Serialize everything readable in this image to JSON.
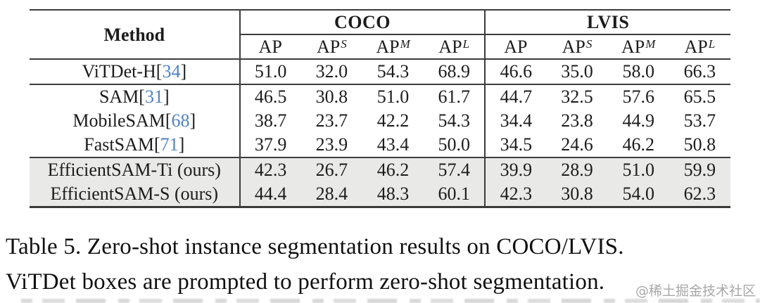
{
  "table": {
    "method_header": "Method",
    "groups": [
      {
        "label": "COCO"
      },
      {
        "label": "LVIS"
      }
    ],
    "subheaders": [
      {
        "base": "AP",
        "sup": ""
      },
      {
        "base": "AP",
        "sup": "S"
      },
      {
        "base": "AP",
        "sup": "M"
      },
      {
        "base": "AP",
        "sup": "L"
      },
      {
        "base": "AP",
        "sup": ""
      },
      {
        "base": "AP",
        "sup": "S"
      },
      {
        "base": "AP",
        "sup": "M"
      },
      {
        "base": "AP",
        "sup": "L"
      }
    ],
    "rows": [
      {
        "method": {
          "text": "ViTDet-H",
          "open": "[",
          "cite": "34",
          "close": "]"
        },
        "values": [
          "51.0",
          "32.0",
          "54.3",
          "68.9",
          "46.6",
          "35.0",
          "58.0",
          "66.3"
        ]
      },
      {
        "method": {
          "text": "SAM",
          "open": "[",
          "cite": "31",
          "close": "]"
        },
        "values": [
          "46.5",
          "30.8",
          "51.0",
          "61.7",
          "44.7",
          "32.5",
          "57.6",
          "65.5"
        ]
      },
      {
        "method": {
          "text": "MobileSAM",
          "open": "[",
          "cite": "68",
          "close": "]"
        },
        "values": [
          "38.7",
          "23.7",
          "42.2",
          "54.3",
          "34.4",
          "23.8",
          "44.9",
          "53.7"
        ]
      },
      {
        "method": {
          "text": "FastSAM",
          "open": "[",
          "cite": "71",
          "close": "]"
        },
        "values": [
          "37.9",
          "23.9",
          "43.4",
          "50.0",
          "34.5",
          "24.6",
          "46.2",
          "50.8"
        ]
      },
      {
        "method": {
          "text": "EfficientSAM-Ti (ours)",
          "open": "",
          "cite": "",
          "close": ""
        },
        "values": [
          "42.3",
          "26.7",
          "46.2",
          "57.4",
          "39.9",
          "28.9",
          "51.0",
          "59.9"
        ]
      },
      {
        "method": {
          "text": "EfficientSAM-S (ours)",
          "open": "",
          "cite": "",
          "close": ""
        },
        "values": [
          "44.4",
          "28.4",
          "48.3",
          "60.1",
          "42.3",
          "30.8",
          "54.0",
          "62.3"
        ]
      }
    ]
  },
  "caption": {
    "line1": "Table 5. Zero-shot instance segmentation results on COCO/LVIS.",
    "line2": "ViTDet boxes are prompted to perform zero-shot segmentation."
  },
  "watermark": "@稀土掘金技术社区",
  "chart_data": {
    "type": "table",
    "title": "Zero-shot instance segmentation results on COCO/LVIS",
    "column_groups": [
      "COCO",
      "LVIS"
    ],
    "columns": [
      "Method",
      "AP",
      "AP_S",
      "AP_M",
      "AP_L",
      "AP",
      "AP_S",
      "AP_M",
      "AP_L"
    ],
    "rows": [
      [
        "ViTDet-H[34]",
        51.0,
        32.0,
        54.3,
        68.9,
        46.6,
        35.0,
        58.0,
        66.3
      ],
      [
        "SAM[31]",
        46.5,
        30.8,
        51.0,
        61.7,
        44.7,
        32.5,
        57.6,
        65.5
      ],
      [
        "MobileSAM[68]",
        38.7,
        23.7,
        42.2,
        54.3,
        34.4,
        23.8,
        44.9,
        53.7
      ],
      [
        "FastSAM[71]",
        37.9,
        23.9,
        43.4,
        50.0,
        34.5,
        24.6,
        46.2,
        50.8
      ],
      [
        "EfficientSAM-Ti (ours)",
        42.3,
        26.7,
        46.2,
        57.4,
        39.9,
        28.9,
        51.0,
        59.9
      ],
      [
        "EfficientSAM-S (ours)",
        44.4,
        28.4,
        48.3,
        60.1,
        42.3,
        30.8,
        54.0,
        62.3
      ]
    ],
    "highlighted_rows": [
      "EfficientSAM-Ti (ours)",
      "EfficientSAM-S (ours)"
    ]
  },
  "colors": {
    "citation_blue": "#4e82c2",
    "highlight_row_bg": "#e9e9e7",
    "rule": "#3c3c3c"
  }
}
